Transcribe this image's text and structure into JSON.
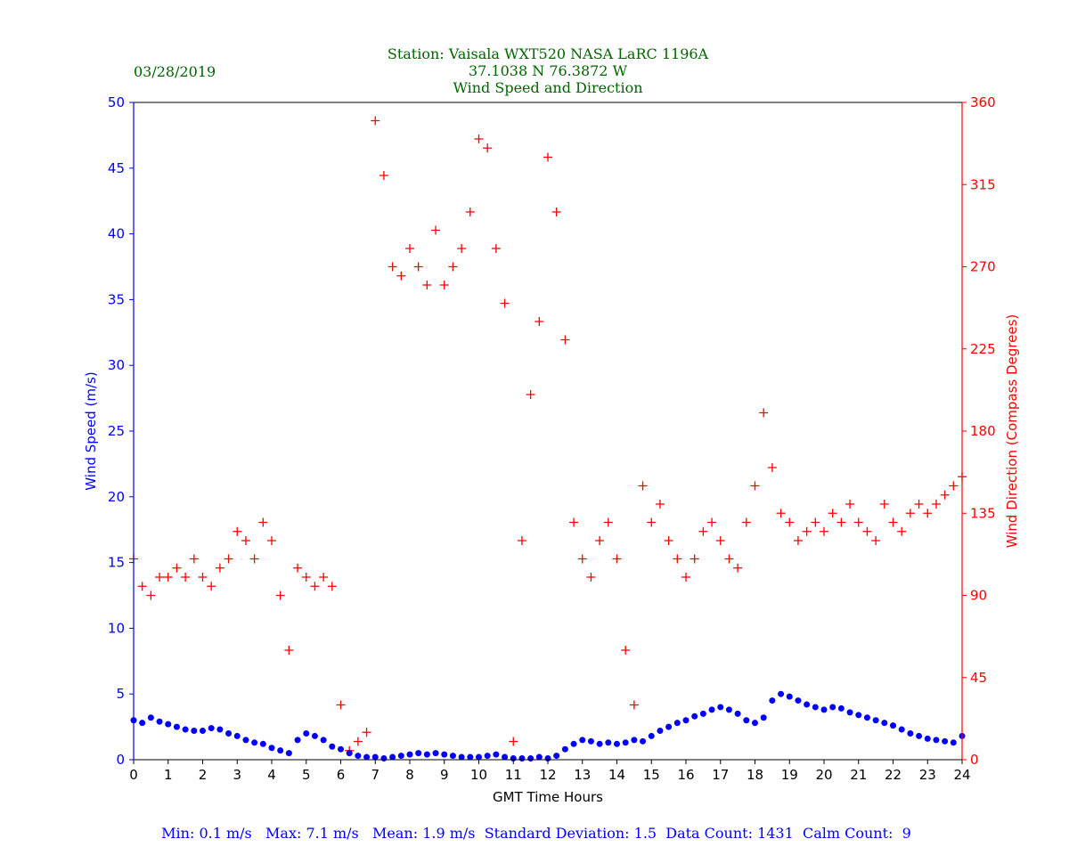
{
  "chart_data": {
    "type": "scatter",
    "date": "03/28/2019",
    "title_lines": [
      "Station:  Vaisala WXT520  NASA LaRC 1196A",
      "37.1038 N 76.3872 W",
      "Wind Speed and Direction"
    ],
    "xlabel": "GMT Time Hours",
    "ylabel_left": "Wind Speed (m/s)",
    "ylabel_right": "Wind Direction (Compass Degrees)",
    "xlim": [
      0,
      24
    ],
    "ylim_left": [
      0,
      50
    ],
    "ylim_right": [
      0,
      360
    ],
    "xticks": [
      "0",
      "1",
      "2",
      "3",
      "4",
      "5",
      "6",
      "7",
      "8",
      "9",
      "10",
      "11",
      "12",
      "13",
      "14",
      "15",
      "16",
      "17",
      "18",
      "19",
      "20",
      "21",
      "22",
      "23",
      "24"
    ],
    "yticks_left": [
      "0",
      "5",
      "10",
      "15",
      "20",
      "25",
      "30",
      "35",
      "40",
      "45",
      "50"
    ],
    "yticks_right": [
      "0",
      "45",
      "90",
      "135",
      "180",
      "225",
      "270",
      "315",
      "360"
    ],
    "grid": false,
    "colors": {
      "speed": "#0000ff",
      "direction": "#ff0000",
      "title": "#006400"
    },
    "x_step_hours": 0.25,
    "series": [
      {
        "name": "Wind Speed",
        "axis": "left",
        "marker": "dot",
        "values": [
          3.0,
          2.8,
          3.2,
          2.9,
          2.7,
          2.5,
          2.3,
          2.2,
          2.2,
          2.4,
          2.3,
          2.0,
          1.8,
          1.5,
          1.3,
          1.2,
          0.9,
          0.7,
          0.5,
          1.5,
          2.0,
          1.8,
          1.5,
          1.0,
          0.8,
          0.5,
          0.3,
          0.2,
          0.2,
          0.1,
          0.2,
          0.3,
          0.4,
          0.5,
          0.4,
          0.5,
          0.4,
          0.3,
          0.2,
          0.2,
          0.2,
          0.3,
          0.4,
          0.2,
          0.1,
          0.1,
          0.1,
          0.2,
          0.1,
          0.3,
          0.8,
          1.2,
          1.5,
          1.4,
          1.2,
          1.3,
          1.2,
          1.3,
          1.5,
          1.4,
          1.8,
          2.2,
          2.5,
          2.8,
          3.0,
          3.3,
          3.5,
          3.8,
          4.0,
          3.8,
          3.5,
          3.0,
          2.8,
          3.2,
          4.5,
          5.0,
          4.8,
          4.5,
          4.2,
          4.0,
          3.8,
          4.0,
          3.9,
          3.6,
          3.4,
          3.2,
          3.0,
          2.8,
          2.6,
          2.3,
          2.0,
          1.8,
          1.6,
          1.5,
          1.4,
          1.3,
          1.8
        ]
      },
      {
        "name": "Wind Direction",
        "axis": "right",
        "marker": "plus",
        "values": [
          110,
          95,
          90,
          100,
          100,
          105,
          100,
          110,
          100,
          95,
          105,
          110,
          125,
          120,
          110,
          130,
          120,
          90,
          60,
          105,
          100,
          95,
          100,
          95,
          30,
          5,
          10,
          15,
          350,
          320,
          270,
          265,
          280,
          270,
          260,
          290,
          260,
          270,
          280,
          300,
          340,
          335,
          280,
          250,
          10,
          120,
          200,
          240,
          330,
          300,
          230,
          130,
          110,
          100,
          120,
          130,
          110,
          60,
          30,
          150,
          130,
          140,
          120,
          110,
          100,
          110,
          125,
          130,
          120,
          110,
          105,
          130,
          150,
          190,
          160,
          135,
          130,
          120,
          125,
          130,
          125,
          135,
          130,
          140,
          130,
          125,
          120,
          140,
          130,
          125,
          135,
          140,
          135,
          140,
          145,
          150,
          155
        ]
      }
    ],
    "stats": {
      "min": "Min: 0.1 m/s",
      "max": "Max: 7.1 m/s",
      "mean": "Mean: 1.9 m/s",
      "std": "Standard Deviation: 1.5",
      "count": "Data Count: 1431",
      "calm": "Calm Count:  9"
    }
  }
}
